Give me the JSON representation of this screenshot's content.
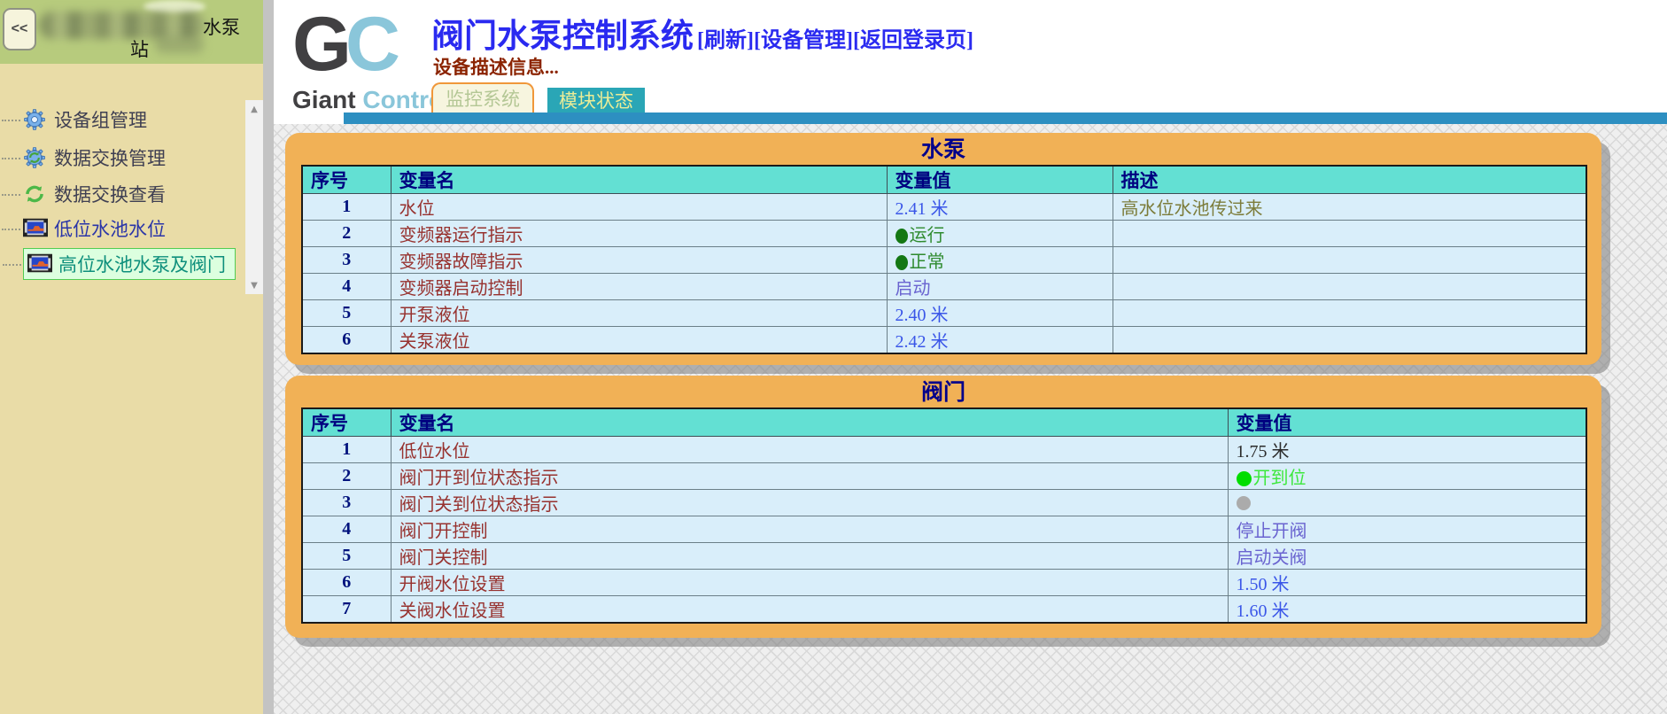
{
  "sidebar": {
    "collapse_label": "<<",
    "station_title_line1": "水泵",
    "station_title_line2": "站",
    "items": [
      {
        "label": "设备组管理",
        "icon": "gear-icon",
        "selected": false
      },
      {
        "label": "数据交换管理",
        "icon": "gear-sync-icon",
        "selected": false
      },
      {
        "label": "数据交换查看",
        "icon": "sync-icon",
        "selected": false
      },
      {
        "label": "低位水池水位",
        "icon": "monitor-icon",
        "selected": false
      },
      {
        "label": "高位水池水泵及阀门",
        "icon": "monitor-icon",
        "selected": true
      }
    ]
  },
  "icons": {
    "scroll_up": "▲",
    "scroll_down": "▼"
  },
  "header": {
    "logo": {
      "g": "G",
      "c": "C",
      "giant": "Giant ",
      "control": "Control"
    },
    "title": "阀门水泵控制系统",
    "links": [
      "[刷新]",
      "[设备管理]",
      "[返回登录页]"
    ],
    "description": "设备描述信息...",
    "tabs": [
      {
        "label": "监控系统",
        "active": false
      },
      {
        "label": "模块状态",
        "active": true
      }
    ]
  },
  "panels": [
    {
      "title": "水泵",
      "columns": [
        "序号",
        "变量名",
        "变量值",
        "描述"
      ],
      "rows": [
        {
          "no": "1",
          "name": "水位",
          "value": "2.41 米",
          "value_type": "number",
          "desc": "高水位水池传过来"
        },
        {
          "no": "2",
          "name": "变频器运行指示",
          "value": "运行",
          "value_type": "status-green",
          "desc": ""
        },
        {
          "no": "3",
          "name": "变频器故障指示",
          "value": "正常",
          "value_type": "status-green",
          "desc": ""
        },
        {
          "no": "4",
          "name": "变频器启动控制",
          "value": "启动",
          "value_type": "link",
          "desc": ""
        },
        {
          "no": "5",
          "name": "开泵液位",
          "value": "2.40 米",
          "value_type": "number",
          "desc": ""
        },
        {
          "no": "6",
          "name": "关泵液位",
          "value": "2.42 米",
          "value_type": "number",
          "desc": ""
        }
      ]
    },
    {
      "title": "阀门",
      "columns": [
        "序号",
        "变量名",
        "变量值"
      ],
      "rows": [
        {
          "no": "1",
          "name": "低位水位",
          "value": "1.75 米",
          "value_type": "plain"
        },
        {
          "no": "2",
          "name": "阀门开到位状态指示",
          "value": "开到位",
          "value_type": "status-bright-green"
        },
        {
          "no": "3",
          "name": "阀门关到位状态指示",
          "value": "",
          "value_type": "status-gray"
        },
        {
          "no": "4",
          "name": "阀门开控制",
          "value": "停止开阀",
          "value_type": "link"
        },
        {
          "no": "5",
          "name": "阀门关控制",
          "value": "启动关阀",
          "value_type": "link"
        },
        {
          "no": "6",
          "name": "开阀水位设置",
          "value": "1.50 米",
          "value_type": "number"
        },
        {
          "no": "7",
          "name": "关阀水位设置",
          "value": "1.60 米",
          "value_type": "number"
        }
      ]
    }
  ],
  "colors": {
    "sidebar_bg": "#e9dca7",
    "sidebar_header_green": "#b7cb7d",
    "selected_item_bg": "#dcffdf",
    "selected_item_border": "#52cc52",
    "panel_orange": "#f1b156",
    "table_header_turquoise": "#63e0d3",
    "row_bg": "#d9eefa",
    "title_blue": "#2a2af0",
    "desc_red": "#8b2300",
    "tab_active_bg": "#2aa6b6",
    "header_bar_blue": "#2d8fc1",
    "status_green": "#147814",
    "status_bright_green": "#00dd00",
    "status_gray": "#ababab",
    "value_blue": "#3a56e8",
    "value_link_purple": "#6a64d0"
  }
}
